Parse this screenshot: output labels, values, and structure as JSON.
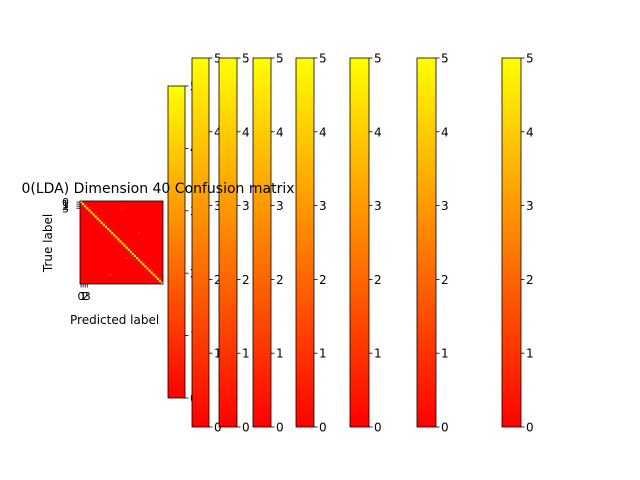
{
  "chart_data": {
    "type": "heatmap",
    "title": "0(LDA) Dimension 40 Confusion matrix",
    "xlabel": "Predicted label",
    "ylabel": "True label",
    "x_tick_labels": [
      "0",
      "1",
      "2",
      "3"
    ],
    "y_tick_labels": [
      "0",
      "1",
      "2",
      "3"
    ],
    "n_classes": 40,
    "diagonal_value": 5,
    "off_diagonal_value": 0,
    "scattered_off_diagonal": [
      {
        "row": 3,
        "col": 20,
        "value": 1
      },
      {
        "row": 15,
        "col": 28,
        "value": 1
      },
      {
        "row": 27,
        "col": 22,
        "value": 1
      },
      {
        "row": 35,
        "col": 14,
        "value": 1
      }
    ],
    "colormap": {
      "low_color": "#ff0000",
      "high_color": "#ffff00"
    },
    "colorbar_range": [
      0,
      5
    ],
    "colorbar_ticks": [
      "0",
      "1",
      "2",
      "3",
      "4",
      "5"
    ],
    "colorbar_count": 7
  }
}
